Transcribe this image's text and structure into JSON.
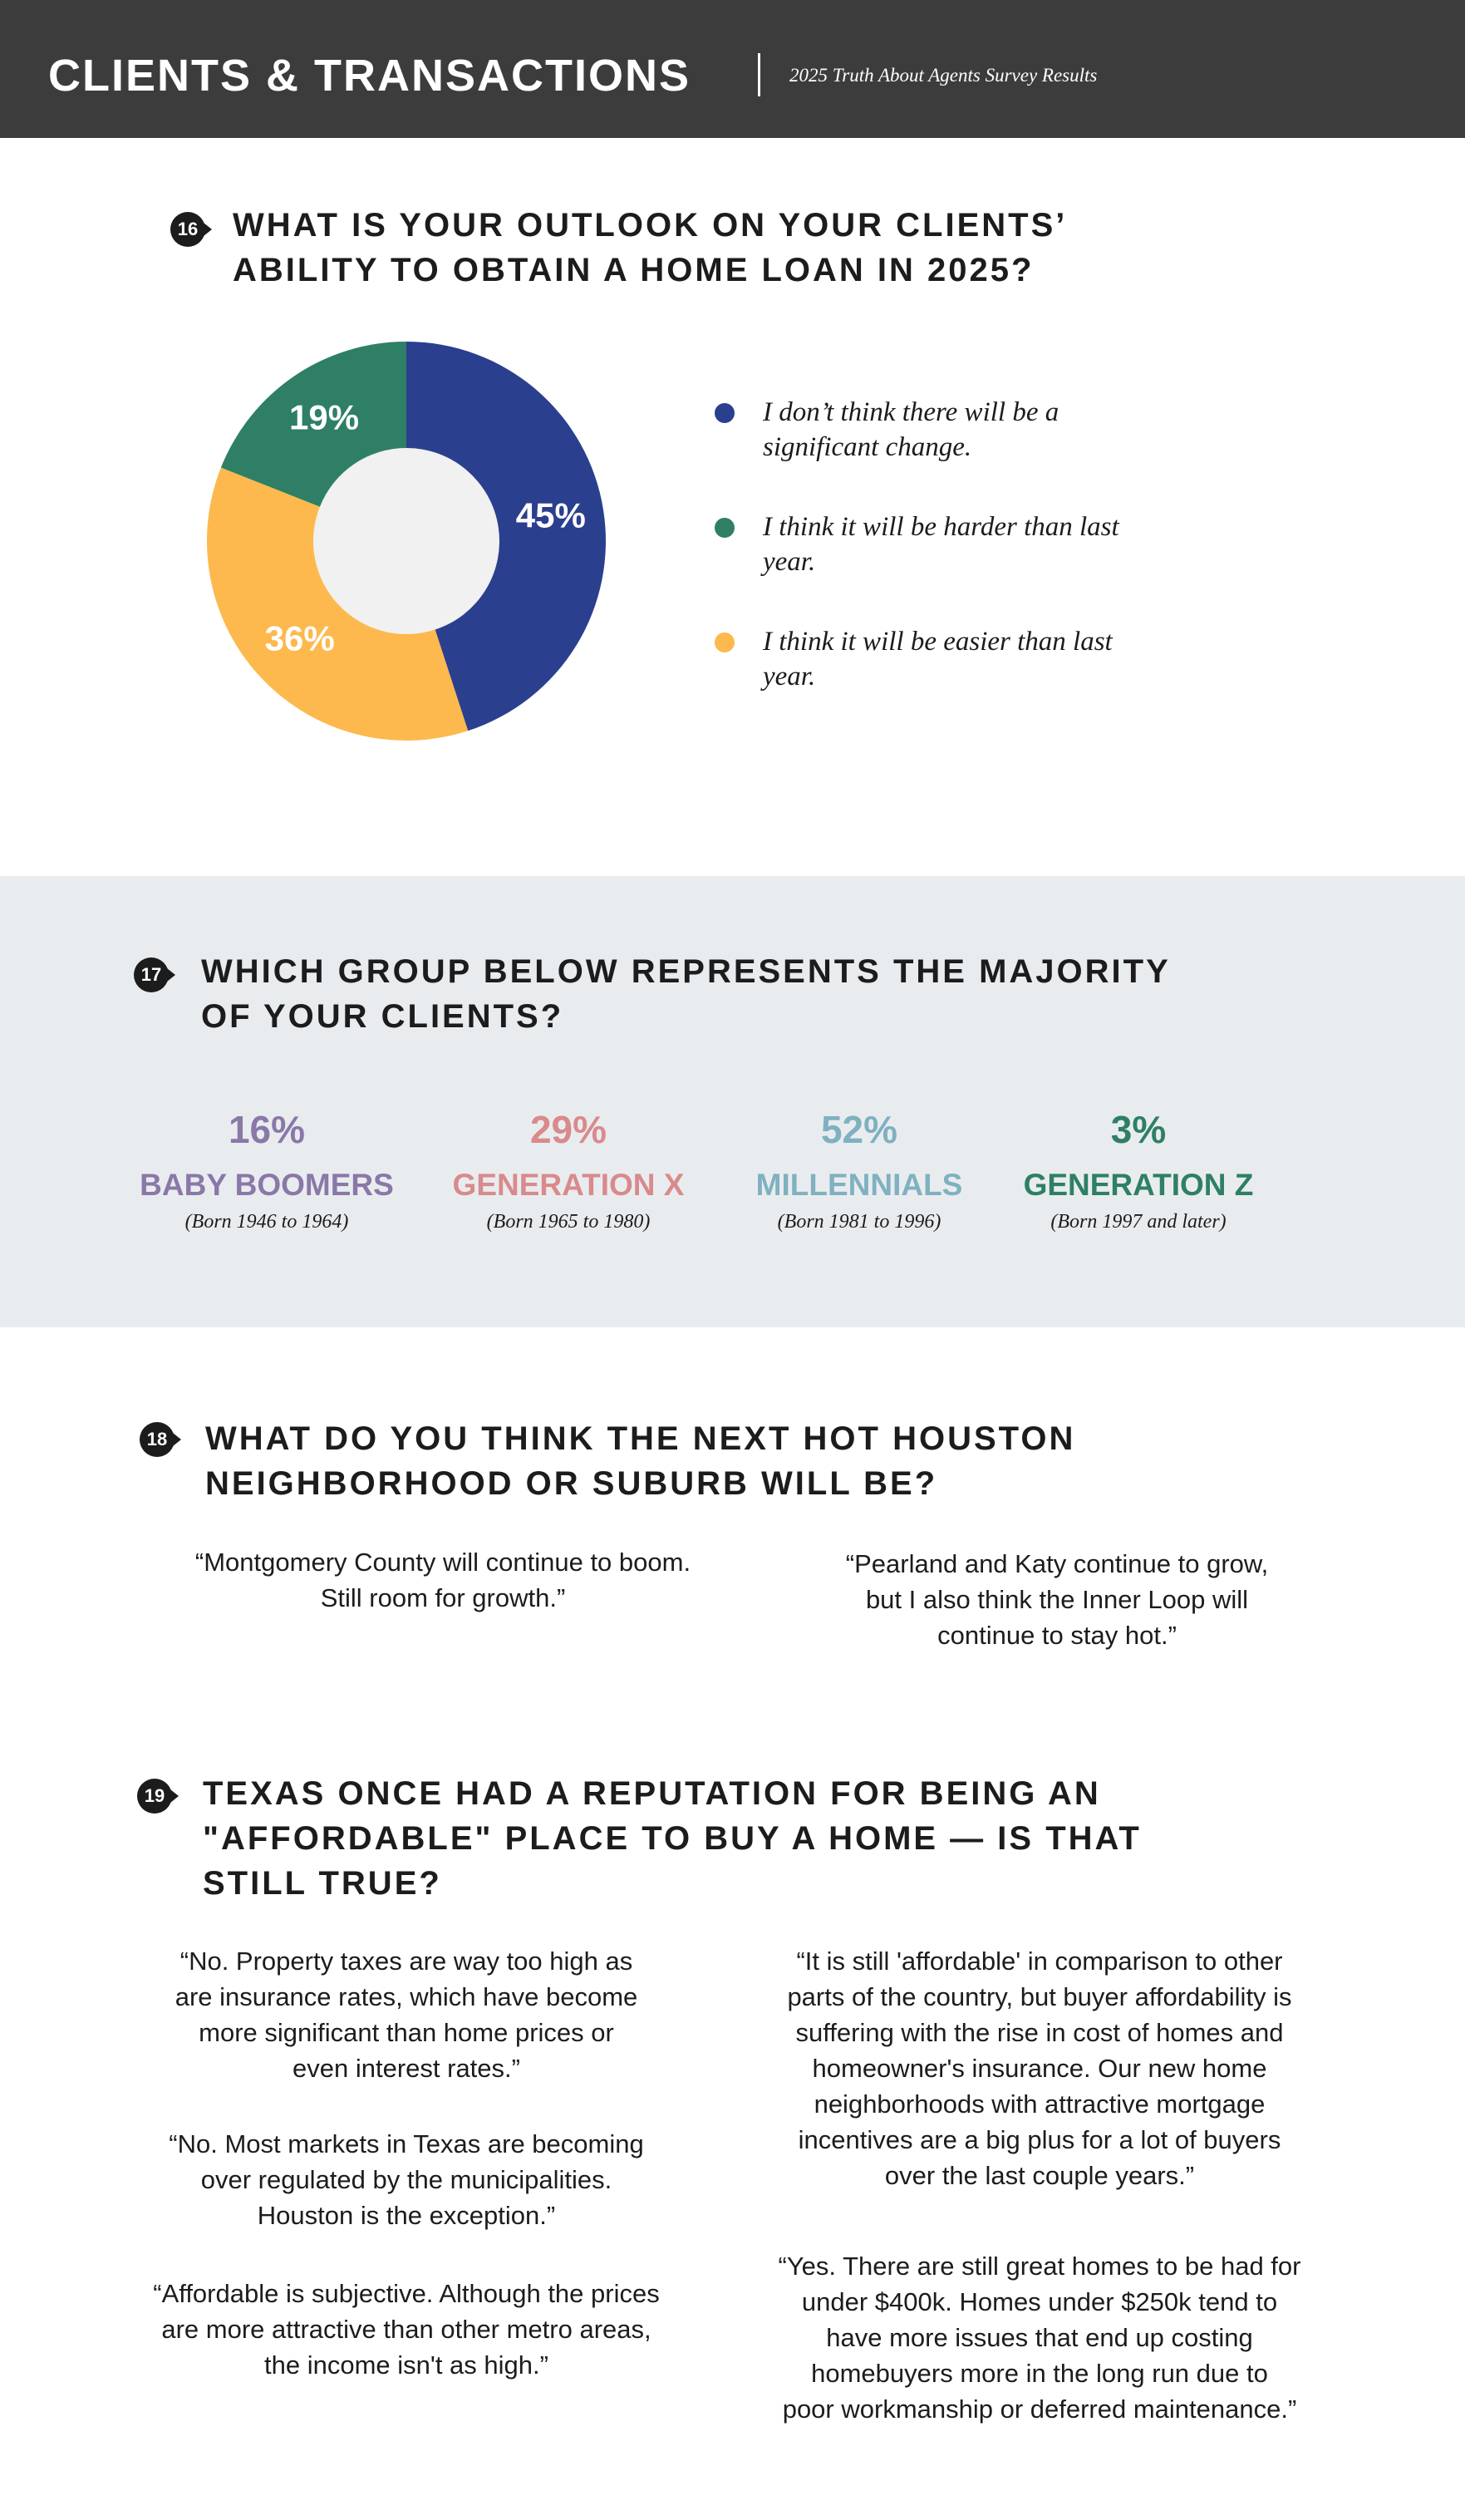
{
  "header": {
    "title": "CLIENTS & TRANSACTIONS",
    "subtitle": "2025 Truth About Agents Survey Results"
  },
  "q16": {
    "number": "16",
    "question_lines": [
      "WHAT IS YOUR OUTLOOK ON YOUR CLIENTS’",
      "ABILITY TO OBTAIN A HOME LOAN IN 2025?"
    ]
  },
  "chart_data": {
    "type": "pie",
    "categories": [
      "I don’t think there will be a significant change.",
      "I think it will be harder than last year.",
      "I think it will be easier than last year."
    ],
    "values": [
      45,
      19,
      36
    ],
    "value_labels": [
      "45%",
      "19%",
      "36%"
    ],
    "colors": [
      "#2b3f8f",
      "#2e7f66",
      "#fdb94d"
    ]
  },
  "q17": {
    "number": "17",
    "question_lines": [
      "WHICH GROUP BELOW REPRESENTS THE MAJORITY",
      "OF YOUR CLIENTS?"
    ],
    "groups": [
      {
        "percent": "16%",
        "name": "BABY BOOMERS",
        "born": "(Born 1946 to 1964)",
        "color": "#8a78a8"
      },
      {
        "percent": "29%",
        "name": "GENERATION X",
        "born": "(Born 1965 to 1980)",
        "color": "#d98a8c"
      },
      {
        "percent": "52%",
        "name": "MILLENNIALS",
        "born": "(Born 1981 to 1996)",
        "color": "#7fb1c0"
      },
      {
        "percent": "3%",
        "name": "GENERATION Z",
        "born": "(Born 1997 and later)",
        "color": "#2e7f66"
      }
    ]
  },
  "q18": {
    "number": "18",
    "question_lines": [
      "WHAT DO YOU THINK THE NEXT HOT HOUSTON",
      "NEIGHBORHOOD OR SUBURB WILL BE?"
    ],
    "quotes": [
      [
        "“Montgomery County will continue to boom.",
        "Still room for growth.”"
      ],
      [
        "“Pearland and Katy continue to grow,",
        "but I also think the Inner Loop will",
        "continue to stay hot.”"
      ]
    ]
  },
  "q19": {
    "number": "19",
    "question_lines": [
      "TEXAS ONCE HAD A REPUTATION FOR BEING AN",
      "\"AFFORDABLE\" PLACE TO BUY A HOME — IS THAT",
      "STILL TRUE?"
    ],
    "quotes": [
      [
        "“No. Property taxes are way too high as",
        "are insurance rates, which have become",
        "more significant than home prices or",
        "even interest rates.”"
      ],
      [
        "“No. Most markets in Texas are becoming",
        "over regulated by the municipalities.",
        "Houston is the exception.”"
      ],
      [
        "“Affordable is subjective. Although the prices",
        "are more attractive than other metro areas,",
        "the income isn't as high.”"
      ],
      [
        "“It is still 'affordable' in comparison to other",
        "parts of the country, but buyer affordability is",
        "suffering with the rise in cost of homes and",
        "homeowner's insurance. Our new home",
        "neighborhoods with attractive mortgage",
        "incentives are a big plus for a lot of buyers",
        "over the last couple years.”"
      ],
      [
        "“Yes.  There are still great homes to be had for",
        "under $400k.  Homes under $250k tend to",
        "have more issues that end up costing",
        "homebuyers more in the long run due to",
        "poor workmanship or deferred maintenance.”"
      ]
    ]
  }
}
